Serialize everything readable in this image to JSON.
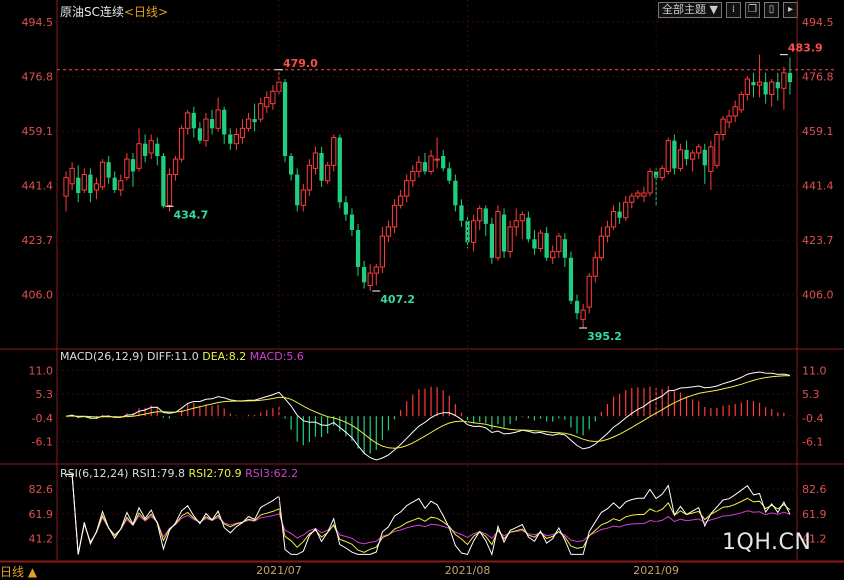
{
  "header": {
    "title": "原油SC连续",
    "period": "<日线>",
    "view_select": "全部主题",
    "select_arrow": "▼",
    "toolbar_icons": [
      "grid-icon",
      "restore-icon",
      "window-icon",
      "expand-icon"
    ]
  },
  "footer": {
    "period_label": "日线 ▲"
  },
  "logo": "1QH.CN",
  "chart_data": [
    {
      "type": "candlestick",
      "y_ticks": [
        "494.5",
        "476.8",
        "459.1",
        "441.4",
        "423.7",
        "406.0"
      ],
      "ylim": [
        395.2,
        494.5
      ],
      "dashed_line": {
        "value": 479.0,
        "label": "479.0"
      },
      "markers": [
        {
          "label": "479.0",
          "index": 35
        },
        {
          "label": "434.7",
          "index": 17
        },
        {
          "label": "407.2",
          "index": 51
        },
        {
          "label": "395.2",
          "index": 85
        },
        {
          "label": "483.9",
          "index": 118
        }
      ],
      "x_ticks": [
        {
          "label": "2021/07",
          "index": 35
        },
        {
          "label": "2021/08",
          "index": 66
        },
        {
          "label": "2021/09",
          "index": 97
        }
      ],
      "candles": [
        [
          438,
          444,
          433,
          446
        ],
        [
          442,
          447,
          440,
          449
        ],
        [
          444,
          439,
          436,
          448
        ],
        [
          440,
          445,
          439,
          447
        ],
        [
          445,
          439,
          436,
          447
        ],
        [
          440,
          442,
          437,
          444
        ],
        [
          441,
          449,
          440,
          450
        ],
        [
          449,
          444,
          442,
          451
        ],
        [
          444,
          440,
          439,
          446
        ],
        [
          440,
          443,
          438,
          445
        ],
        [
          444,
          450,
          443,
          452
        ],
        [
          450,
          446,
          441,
          452
        ],
        [
          447,
          455,
          446,
          460
        ],
        [
          455,
          451,
          449,
          458
        ],
        [
          452,
          456,
          450,
          458
        ],
        [
          455,
          451,
          448,
          457
        ],
        [
          451,
          434.7,
          434,
          452
        ],
        [
          435,
          445,
          433,
          447
        ],
        [
          445,
          450,
          443,
          451
        ],
        [
          450,
          460,
          449,
          461
        ],
        [
          460,
          465,
          458,
          466
        ],
        [
          465,
          460,
          457,
          467
        ],
        [
          460,
          456,
          455,
          462
        ],
        [
          456,
          463,
          454,
          465
        ],
        [
          463,
          460,
          458,
          466
        ],
        [
          460,
          466,
          459,
          470
        ],
        [
          466,
          458,
          455,
          467
        ],
        [
          458,
          455,
          453,
          460
        ],
        [
          455,
          458,
          453,
          460
        ],
        [
          457,
          460,
          455,
          463
        ],
        [
          460,
          463,
          459,
          465
        ],
        [
          463,
          462,
          459,
          468
        ],
        [
          463,
          468,
          462,
          470
        ],
        [
          467,
          470,
          465,
          472
        ],
        [
          468,
          472,
          466,
          474
        ],
        [
          472,
          475,
          471,
          479
        ],
        [
          475,
          451,
          449,
          476
        ],
        [
          451,
          445,
          443,
          452
        ],
        [
          445,
          435,
          433,
          447
        ],
        [
          435,
          440,
          433,
          442
        ],
        [
          440,
          448,
          438,
          450
        ],
        [
          447,
          452,
          445,
          454
        ],
        [
          452,
          443,
          441,
          454
        ],
        [
          443,
          448,
          442,
          449
        ],
        [
          448,
          457,
          446,
          458
        ],
        [
          457,
          436,
          434,
          458
        ],
        [
          436,
          432,
          430,
          438
        ],
        [
          432,
          427,
          425,
          434
        ],
        [
          427,
          415,
          412,
          429
        ],
        [
          415,
          410,
          408,
          417
        ],
        [
          409,
          413,
          407.2,
          416
        ],
        [
          413,
          415,
          409,
          416
        ],
        [
          415,
          425,
          413,
          428
        ],
        [
          425,
          428,
          423,
          430
        ],
        [
          428,
          435,
          426,
          437
        ],
        [
          435,
          438,
          434,
          440
        ],
        [
          438,
          443,
          436,
          445
        ],
        [
          443,
          446,
          441,
          448
        ],
        [
          446,
          449,
          444,
          451
        ],
        [
          449,
          446,
          445,
          452
        ],
        [
          446,
          451,
          445,
          453
        ],
        [
          450,
          450,
          447,
          457
        ],
        [
          451,
          447,
          446,
          453
        ],
        [
          447,
          443,
          442,
          449
        ],
        [
          443,
          435,
          433,
          445
        ],
        [
          435,
          430,
          428,
          437
        ],
        [
          430,
          423,
          421,
          432
        ],
        [
          423,
          430,
          420,
          432
        ],
        [
          430,
          434,
          427,
          435
        ],
        [
          434,
          429,
          425,
          435
        ],
        [
          429,
          418,
          416,
          431
        ],
        [
          418,
          433,
          417,
          435
        ],
        [
          432,
          420,
          418,
          434
        ],
        [
          420,
          428,
          418,
          430
        ],
        [
          428,
          430,
          425,
          434
        ],
        [
          430,
          432,
          424,
          433
        ],
        [
          431,
          424,
          423,
          433
        ],
        [
          424,
          421,
          419,
          427
        ],
        [
          421,
          426,
          420,
          427
        ],
        [
          426,
          418,
          417,
          428
        ],
        [
          418,
          420,
          416,
          422
        ],
        [
          420,
          425,
          418,
          426
        ],
        [
          424,
          418,
          415,
          426
        ],
        [
          418,
          404,
          403,
          420
        ],
        [
          404,
          400,
          398,
          406
        ],
        [
          398,
          401,
          395.2,
          403
        ],
        [
          402,
          412,
          400,
          413
        ],
        [
          412,
          418,
          410,
          420
        ],
        [
          418,
          425,
          417,
          428
        ],
        [
          425,
          428,
          423,
          430
        ],
        [
          428,
          433,
          427,
          435
        ],
        [
          433,
          431,
          429,
          436
        ],
        [
          431,
          436,
          430,
          438
        ],
        [
          436,
          438,
          434,
          439
        ],
        [
          438,
          439,
          437,
          440
        ],
        [
          438,
          439,
          436,
          441
        ],
        [
          439,
          446,
          438,
          447
        ],
        [
          446,
          444,
          435,
          447
        ],
        [
          444,
          447,
          443,
          448
        ],
        [
          446,
          456,
          445,
          457
        ],
        [
          456,
          447,
          445,
          458
        ],
        [
          447,
          453,
          446,
          455
        ],
        [
          453,
          450,
          448,
          456
        ],
        [
          450,
          452,
          446,
          453
        ],
        [
          452,
          454,
          450,
          455
        ],
        [
          453,
          448,
          442,
          455
        ],
        [
          446,
          454,
          440,
          456
        ],
        [
          448,
          458,
          447,
          459
        ],
        [
          458,
          463,
          456,
          464
        ],
        [
          462,
          464,
          460,
          466
        ],
        [
          464,
          467,
          462,
          469
        ],
        [
          466,
          471,
          465,
          472
        ],
        [
          471,
          476,
          469,
          477
        ],
        [
          475,
          474,
          470,
          478
        ],
        [
          474,
          475,
          470,
          483.9
        ],
        [
          475,
          471,
          468,
          478
        ],
        [
          471,
          475,
          467,
          476
        ],
        [
          475,
          473,
          469,
          478
        ],
        [
          473,
          478,
          466,
          480
        ],
        [
          478,
          475,
          471,
          483
        ]
      ]
    },
    {
      "type": "macd",
      "params": "MACD(26,12,9)",
      "diff_label": "DIFF:11.0",
      "dea_label": "DEA:8.2",
      "macd_label": "MACD:5.6",
      "y_ticks": [
        "11.0",
        "5.3",
        "-0.4",
        "-6.1"
      ],
      "ylim": [
        -11,
        13
      ]
    },
    {
      "type": "rsi",
      "params": "RSI(6,12,24)",
      "rsi1_label": "RSI1:79.8",
      "rsi2_label": "RSI2:70.9",
      "rsi3_label": "RSI3:62.2",
      "y_ticks": [
        "82.6",
        "61.9",
        "41.2"
      ],
      "ylim": [
        30,
        92
      ]
    }
  ],
  "colors": {
    "up": "#ff3b3b",
    "down": "#1fcf7f",
    "up_label": "#ff4d4d",
    "down_label": "#33dda0",
    "diff": "#ffffff",
    "dea": "#f0f040",
    "macd": "#d040d0",
    "grid": "#5a1010"
  }
}
